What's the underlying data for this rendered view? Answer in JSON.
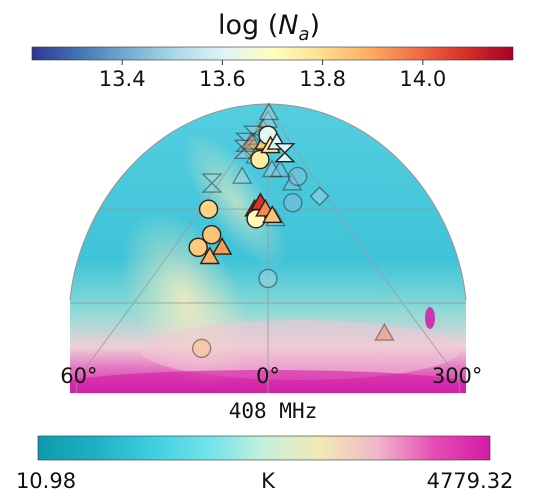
{
  "chart_data": {
    "type": "scatter",
    "projection": "hemisphere (galactic longitude, north cap)",
    "top_colorbar": {
      "title_prefix": "log (",
      "title_symbol": "N",
      "title_sub": "a",
      "title_suffix": ")",
      "cmap": "RdYlBu_r",
      "range": [
        13.22,
        14.18
      ],
      "ticks": [
        "13.4",
        "13.6",
        "13.8",
        "14.0"
      ],
      "tick_values": [
        13.4,
        13.6,
        13.8,
        14.0
      ],
      "stops": [
        "#313695",
        "#4575b4",
        "#74add1",
        "#abd9e9",
        "#e0f3f8",
        "#ffffbf",
        "#fee090",
        "#fdae61",
        "#f46d43",
        "#d73027",
        "#a50026"
      ]
    },
    "map_label": "408 MHz",
    "lon_labels": [
      {
        "text": "60°",
        "lon": 60
      },
      {
        "text": "0°",
        "lon": 0
      },
      {
        "text": "300°",
        "lon": 300
      }
    ],
    "bottom_colorbar": {
      "min_label": "10.98",
      "max_label": "4779.32",
      "unit": "K",
      "stops": [
        "#0f9aac",
        "#1db0c4",
        "#3fcde0",
        "#6fe3ea",
        "#c5f0dc",
        "#f3e9b4",
        "#f0b7c9",
        "#e54fb5",
        "#d41aa6"
      ]
    },
    "points": [
      {
        "lon": 35,
        "lat": 52,
        "value": 13.85,
        "marker": "circle",
        "faded": false
      },
      {
        "lon": 40,
        "lat": 48,
        "value": 13.84,
        "marker": "circle",
        "faded": false
      },
      {
        "lon": 30,
        "lat": 45,
        "value": 13.88,
        "marker": "triangle",
        "faded": false
      },
      {
        "lon": 25,
        "lat": 48,
        "value": 13.92,
        "marker": "triangle",
        "faded": false
      },
      {
        "lon": 10,
        "lat": 60,
        "value": 14.15,
        "marker": "triangle",
        "faded": false
      },
      {
        "lon": 6,
        "lat": 62,
        "value": 14.08,
        "marker": "triangle",
        "faded": false
      },
      {
        "lon": 8,
        "lat": 57,
        "value": 13.72,
        "marker": "circle",
        "faded": false
      },
      {
        "lon": 2,
        "lat": 60,
        "value": 13.95,
        "marker": "triangle",
        "faded": false
      },
      {
        "lon": 357,
        "lat": 58,
        "value": 13.85,
        "marker": "triangle",
        "faded": false
      },
      {
        "lon": 12,
        "lat": 75,
        "value": 13.76,
        "marker": "circle",
        "faded": false
      },
      {
        "lon": 8,
        "lat": 80,
        "value": 13.85,
        "marker": "triangle",
        "faded": false
      },
      {
        "lon": 0,
        "lat": 82,
        "value": 13.62,
        "marker": "circle",
        "faded": false
      },
      {
        "lon": 355,
        "lat": 79,
        "value": 13.78,
        "marker": "triangle",
        "faded": false
      },
      {
        "lon": 340,
        "lat": 80,
        "value": 13.6,
        "marker": "triangle",
        "faded": false
      },
      {
        "lon": 330,
        "lat": 77,
        "value": 13.6,
        "marker": "hourglass",
        "faded": false
      },
      {
        "lon": 50,
        "lat": 60,
        "value": 13.82,
        "marker": "circle",
        "faded": false
      },
      {
        "lon": 20,
        "lat": 84,
        "value": 13.9,
        "marker": "triangle",
        "faded": true
      },
      {
        "lon": 28,
        "lat": 78,
        "value": 13.85,
        "marker": "circle",
        "faded": true
      },
      {
        "lon": 20,
        "lat": 76,
        "value": 13.78,
        "marker": "triangle",
        "faded": true
      },
      {
        "lon": 45,
        "lat": 82,
        "value": 13.5,
        "marker": "hourglass",
        "faded": true
      },
      {
        "lon": 60,
        "lat": 80,
        "value": 13.45,
        "marker": "hourglass",
        "faded": true
      },
      {
        "lon": 50,
        "lat": 78,
        "value": 13.5,
        "marker": "hourglass",
        "faded": true
      },
      {
        "lon": 30,
        "lat": 70,
        "value": 13.5,
        "marker": "triangle",
        "faded": true
      },
      {
        "lon": 80,
        "lat": 68,
        "value": 13.5,
        "marker": "hourglass",
        "faded": true
      },
      {
        "lon": 355,
        "lat": 72,
        "value": 13.5,
        "marker": "triangle",
        "faded": true
      },
      {
        "lon": 345,
        "lat": 72,
        "value": 13.45,
        "marker": "triangle",
        "faded": true
      },
      {
        "lon": 335,
        "lat": 68,
        "value": 13.45,
        "marker": "triangle",
        "faded": true
      },
      {
        "lon": 325,
        "lat": 70,
        "value": 13.45,
        "marker": "circle",
        "faded": true
      },
      {
        "lon": 340,
        "lat": 62,
        "value": 13.45,
        "marker": "circle",
        "faded": true
      },
      {
        "lon": 310,
        "lat": 64,
        "value": 13.5,
        "marker": "diamond",
        "faded": true
      },
      {
        "lon": 0,
        "lat": 86,
        "value": 13.5,
        "marker": "triangle",
        "faded": true
      },
      {
        "lon": 350,
        "lat": 88,
        "value": 13.5,
        "marker": "triangle",
        "faded": true
      },
      {
        "lon": 355,
        "lat": 57,
        "value": 13.5,
        "marker": "triangle",
        "faded": true
      },
      {
        "lon": 0,
        "lat": 38,
        "value": 13.5,
        "marker": "circle",
        "faded": true
      },
      {
        "lon": 20,
        "lat": 15,
        "value": 13.85,
        "marker": "circle",
        "faded": true
      },
      {
        "lon": 320,
        "lat": 20,
        "value": 13.95,
        "marker": "triangle",
        "faded": true
      },
      {
        "lon": 40,
        "lat": 80,
        "value": 13.95,
        "marker": "triangle",
        "faded": true
      }
    ]
  }
}
